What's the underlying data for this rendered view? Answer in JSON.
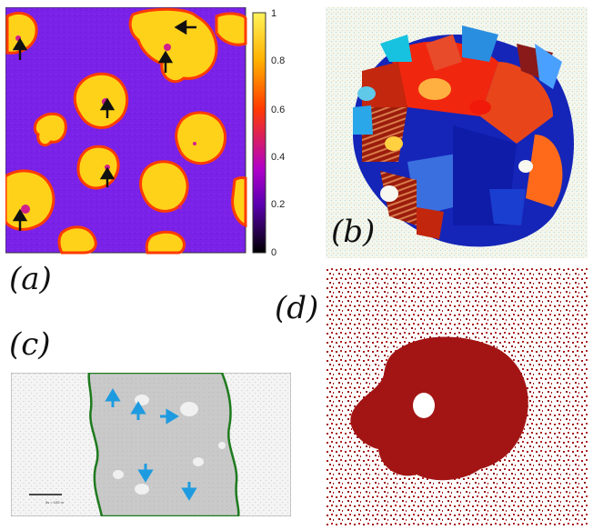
{
  "figure": {
    "panels": [
      {
        "id": "a",
        "label": "(a)"
      },
      {
        "id": "b",
        "label": "(b)"
      },
      {
        "id": "c",
        "label": "(c)"
      },
      {
        "id": "d",
        "label": "(d)"
      }
    ],
    "colorbar": {
      "ticks": [
        "1",
        "0.8",
        "0.6",
        "0.4",
        "0.2",
        "0"
      ],
      "colors": {
        "high": "#fff35a",
        "upper": "#ffb000",
        "mid": "#ff3a00",
        "low": "#b000c8",
        "bottom": "#000000"
      }
    },
    "colors": {
      "background_a": "#7a1fe6",
      "domain_a": "#ffd21a",
      "edge_a": "#ff3b00",
      "domain_d": "#a31515",
      "arrow_c": "#1e9be0",
      "edge_c": "#1e7a1e"
    },
    "scalebar_c": {
      "text": "5s = 100 m"
    }
  }
}
